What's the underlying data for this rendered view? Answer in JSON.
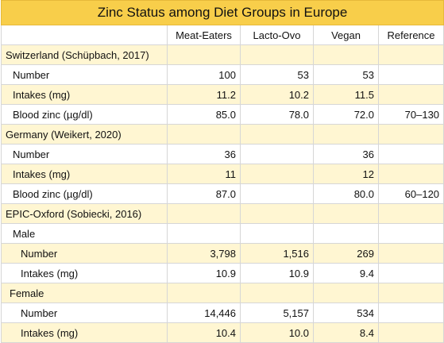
{
  "title": "Zinc Status among Diet Groups in Europe",
  "columns": [
    "Meat-Eaters",
    "Lacto-Ovo",
    "Vegan",
    "Reference"
  ],
  "rows": [
    {
      "label": "Switzerland (Schüpbach, 2017)",
      "indent": 0,
      "hl": true,
      "values": [
        "",
        "",
        "",
        ""
      ]
    },
    {
      "label": "Number",
      "indent": 1,
      "hl": false,
      "values": [
        "100",
        "53",
        "53",
        ""
      ]
    },
    {
      "label": "Intakes (mg)",
      "indent": 1,
      "hl": true,
      "values": [
        "11.2",
        "10.2",
        "11.5",
        ""
      ]
    },
    {
      "label": "Blood zinc (µg/dl)",
      "indent": 1,
      "hl": false,
      "values": [
        "85.0",
        "78.0",
        "72.0",
        "70–130"
      ]
    },
    {
      "label": "Germany (Weikert, 2020)",
      "indent": 0,
      "hl": true,
      "values": [
        "",
        "",
        "",
        ""
      ]
    },
    {
      "label": "Number",
      "indent": 1,
      "hl": false,
      "values": [
        "36",
        "",
        "36",
        ""
      ]
    },
    {
      "label": "Intakes (mg)",
      "indent": 1,
      "hl": true,
      "values": [
        "11",
        "",
        "12",
        ""
      ]
    },
    {
      "label": "Blood zinc (µg/dl)",
      "indent": 1,
      "hl": false,
      "values": [
        "87.0",
        "",
        "80.0",
        "60–120"
      ]
    },
    {
      "label": "EPIC-Oxford (Sobiecki, 2016)",
      "indent": 0,
      "hl": true,
      "values": [
        "",
        "",
        "",
        ""
      ]
    },
    {
      "label": "Male",
      "indent": 1,
      "hl": false,
      "values": [
        "",
        "",
        "",
        ""
      ]
    },
    {
      "label": "Number",
      "indent": 2,
      "hl": true,
      "values": [
        "3,798",
        "1,516",
        "269",
        ""
      ]
    },
    {
      "label": "Intakes (mg)",
      "indent": 2,
      "hl": false,
      "values": [
        "10.9",
        "10.9",
        "9.4",
        ""
      ]
    },
    {
      "label": "Female",
      "indent": 1.5,
      "hl": true,
      "values": [
        "",
        "",
        "",
        ""
      ]
    },
    {
      "label": "Number",
      "indent": 2,
      "hl": false,
      "values": [
        "14,446",
        "5,157",
        "534",
        ""
      ]
    },
    {
      "label": "Intakes (mg)",
      "indent": 2,
      "hl": true,
      "values": [
        "10.4",
        "10.0",
        "8.4",
        ""
      ]
    }
  ]
}
